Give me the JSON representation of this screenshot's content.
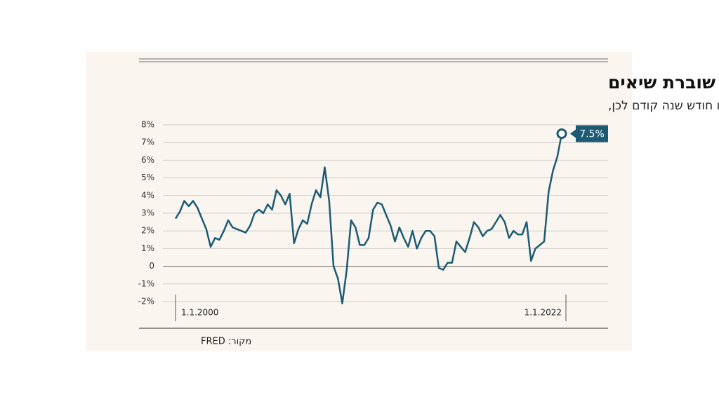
{
  "chart_data": {
    "type": "line",
    "title": "האינפלציה בארה\"ב שוברת שיאים",
    "subtitle": "מדד המחירים לצרכן, שינוי בהשוואה לאותו חודש שנה קודם לכן,",
    "source": "מקור: FRED",
    "x": [
      "1.1.2000",
      "1.4.2000",
      "1.7.2000",
      "1.10.2000",
      "1.1.2001",
      "1.4.2001",
      "1.7.2001",
      "1.10.2001",
      "1.1.2002",
      "1.4.2002",
      "1.7.2002",
      "1.10.2002",
      "1.1.2003",
      "1.4.2003",
      "1.7.2003",
      "1.10.2003",
      "1.1.2004",
      "1.4.2004",
      "1.7.2004",
      "1.10.2004",
      "1.1.2005",
      "1.4.2005",
      "1.7.2005",
      "1.10.2005",
      "1.1.2006",
      "1.4.2006",
      "1.7.2006",
      "1.10.2006",
      "1.1.2007",
      "1.4.2007",
      "1.7.2007",
      "1.10.2007",
      "1.1.2008",
      "1.4.2008",
      "1.7.2008",
      "1.10.2008",
      "1.1.2009",
      "1.4.2009",
      "1.7.2009",
      "1.10.2009",
      "1.1.2010",
      "1.4.2010",
      "1.7.2010",
      "1.10.2010",
      "1.1.2011",
      "1.4.2011",
      "1.7.2011",
      "1.10.2011",
      "1.1.2012",
      "1.4.2012",
      "1.7.2012",
      "1.10.2012",
      "1.1.2013",
      "1.4.2013",
      "1.7.2013",
      "1.10.2013",
      "1.1.2014",
      "1.4.2014",
      "1.7.2014",
      "1.10.2014",
      "1.1.2015",
      "1.4.2015",
      "1.7.2015",
      "1.10.2015",
      "1.1.2016",
      "1.4.2016",
      "1.7.2016",
      "1.10.2016",
      "1.1.2017",
      "1.4.2017",
      "1.7.2017",
      "1.10.2017",
      "1.1.2018",
      "1.4.2018",
      "1.7.2018",
      "1.10.2018",
      "1.1.2019",
      "1.4.2019",
      "1.7.2019",
      "1.10.2019",
      "1.1.2020",
      "1.4.2020",
      "1.7.2020",
      "1.10.2020",
      "1.1.2021",
      "1.4.2021",
      "1.7.2021",
      "1.10.2021",
      "1.1.2022"
    ],
    "series": [
      {
        "color": "#1d5a73",
        "values": [
          2.7,
          3.1,
          3.7,
          3.4,
          3.7,
          3.3,
          2.7,
          2.1,
          1.1,
          1.6,
          1.5,
          2.0,
          2.6,
          2.2,
          2.1,
          2.0,
          1.9,
          2.3,
          3.0,
          3.2,
          3.0,
          3.5,
          3.2,
          4.3,
          4.0,
          3.5,
          4.1,
          1.3,
          2.1,
          2.6,
          2.4,
          3.5,
          4.3,
          3.9,
          5.6,
          3.7,
          0.0,
          -0.7,
          -2.1,
          -0.2,
          2.6,
          2.2,
          1.2,
          1.2,
          1.6,
          3.2,
          3.6,
          3.5,
          2.9,
          2.3,
          1.4,
          2.2,
          1.6,
          1.1,
          2.0,
          1.0,
          1.6,
          2.0,
          2.0,
          1.7,
          -0.1,
          -0.2,
          0.2,
          0.2,
          1.4,
          1.1,
          0.8,
          1.6,
          2.5,
          2.2,
          1.7,
          2.0,
          2.1,
          2.5,
          2.9,
          2.5,
          1.6,
          2.0,
          1.8,
          1.8,
          2.5,
          0.3,
          1.0,
          1.2,
          1.4,
          4.2,
          5.4,
          6.2,
          7.5
        ],
        "value_labels": [
          null,
          null,
          null,
          null,
          null,
          null,
          null,
          null,
          null,
          null,
          null,
          null,
          null,
          null,
          null,
          null,
          null,
          null,
          null,
          null,
          null,
          null,
          null,
          null,
          null,
          null,
          null,
          null,
          null,
          null,
          null,
          null,
          null,
          null,
          null,
          null,
          null,
          null,
          null,
          null,
          null,
          null,
          null,
          null,
          null,
          null,
          null,
          null,
          null,
          null,
          null,
          null,
          null,
          null,
          null,
          null,
          null,
          null,
          null,
          null,
          null,
          null,
          null,
          null,
          null,
          null,
          null,
          null,
          null,
          null,
          null,
          null,
          null,
          null,
          null,
          null,
          null,
          null,
          null,
          null,
          null,
          null,
          null,
          null,
          null,
          null,
          null,
          null,
          "7.5%"
        ]
      }
    ],
    "xticks": [
      "1.1.2000",
      "1.1.2022"
    ],
    "ylim": [
      -2,
      8
    ],
    "yticks": [
      {
        "value": -2,
        "label": "-2%"
      },
      {
        "value": -1,
        "label": "-1%"
      },
      0,
      {
        "value": 1,
        "label": "1%"
      },
      {
        "value": 2,
        "label": "2%"
      },
      {
        "value": 3,
        "label": "3%"
      },
      {
        "value": 4,
        "label": "4%"
      },
      {
        "value": 5,
        "label": "5%"
      },
      {
        "value": 6,
        "label": "6%"
      },
      {
        "value": 7,
        "label": "7%"
      },
      {
        "value": 8,
        "label": "8%"
      }
    ],
    "grid": true
  }
}
